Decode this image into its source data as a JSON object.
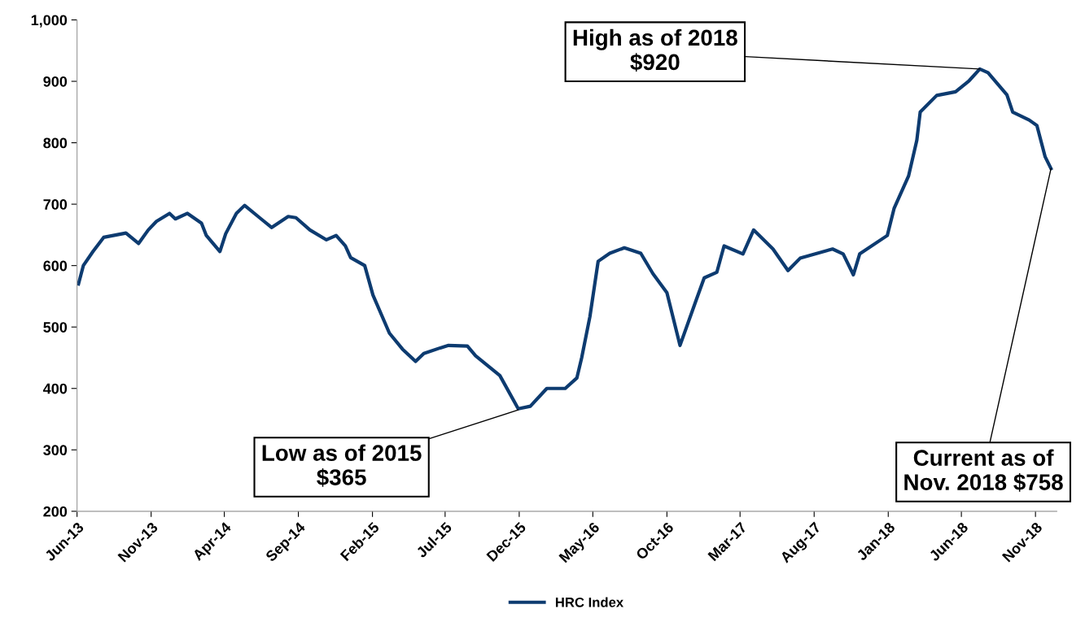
{
  "chart_data": {
    "type": "line",
    "legend": "bottom",
    "grid": false,
    "marker": "none",
    "line_style": "solid",
    "ylim": [
      200,
      1000
    ],
    "yticks": [
      200,
      300,
      400,
      500,
      600,
      700,
      800,
      900,
      {
        "value": 1000,
        "label": "1,000"
      }
    ],
    "xlim": [
      "2013-06-01",
      "2018-12-15"
    ],
    "xticks": [
      {
        "value": "2013-06-01",
        "label": "Jun-13"
      },
      {
        "value": "2013-11-01",
        "label": "Nov-13"
      },
      {
        "value": "2014-04-01",
        "label": "Apr-14"
      },
      {
        "value": "2014-09-01",
        "label": "Sep-14"
      },
      {
        "value": "2015-02-01",
        "label": "Feb-15"
      },
      {
        "value": "2015-07-01",
        "label": "Jul-15"
      },
      {
        "value": "2015-12-01",
        "label": "Dec-15"
      },
      {
        "value": "2016-05-01",
        "label": "May-16"
      },
      {
        "value": "2016-10-01",
        "label": "Oct-16"
      },
      {
        "value": "2017-03-01",
        "label": "Mar-17"
      },
      {
        "value": "2017-08-01",
        "label": "Aug-17"
      },
      {
        "value": "2018-01-01",
        "label": "Jan-18"
      },
      {
        "value": "2018-06-01",
        "label": "Jun-18"
      },
      {
        "value": "2018-11-01",
        "label": "Nov-18"
      }
    ],
    "x": [
      "2013-06-04",
      "2013-06-14",
      "2013-07-04",
      "2013-07-26",
      "2013-09-10",
      "2013-10-06",
      "2013-10-26",
      "2013-11-12",
      "2013-12-09",
      "2013-12-21",
      "2014-01-15",
      "2014-02-13",
      "2014-02-23",
      "2014-03-23",
      "2014-04-04",
      "2014-04-26",
      "2014-05-13",
      "2014-06-16",
      "2014-07-08",
      "2014-08-11",
      "2014-08-27",
      "2014-09-25",
      "2014-10-29",
      "2014-11-18",
      "2014-12-07",
      "2014-12-18",
      "2015-01-16",
      "2015-02-02",
      "2015-03-08",
      "2015-04-04",
      "2015-05-01",
      "2015-05-18",
      "2015-06-21",
      "2015-07-08",
      "2015-08-16",
      "2015-09-02",
      "2015-10-22",
      "2015-11-29",
      "2015-12-24",
      "2016-01-27",
      "2016-03-05",
      "2016-03-29",
      "2016-04-08",
      "2016-04-25",
      "2016-05-12",
      "2016-06-05",
      "2016-07-05",
      "2016-08-08",
      "2016-09-02",
      "2016-10-01",
      "2016-10-28",
      "2016-11-30",
      "2016-12-17",
      "2017-01-12",
      "2017-01-27",
      "2017-03-07",
      "2017-03-29",
      "2017-05-08",
      "2017-06-08",
      "2017-07-03",
      "2017-09-08",
      "2017-09-30",
      "2017-10-21",
      "2017-11-03",
      "2017-12-30",
      "2018-01-13",
      "2018-02-12",
      "2018-03-01",
      "2018-03-08",
      "2018-04-11",
      "2018-05-20",
      "2018-06-17",
      "2018-07-09",
      "2018-07-26",
      "2018-09-03",
      "2018-09-15",
      "2018-10-19",
      "2018-11-04",
      "2018-11-21",
      "2018-12-03"
    ],
    "series": [
      {
        "name": "HRC Index",
        "color": "#0d3b70",
        "values": [
          570,
          600,
          623,
          646,
          653,
          636,
          658,
          672,
          685,
          676,
          685,
          669,
          649,
          623,
          652,
          685,
          698,
          676,
          662,
          680,
          678,
          658,
          642,
          649,
          632,
          613,
          600,
          552,
          490,
          464,
          444,
          457,
          466,
          470,
          469,
          453,
          421,
          367,
          371,
          400,
          400,
          417,
          450,
          517,
          607,
          620,
          629,
          620,
          587,
          556,
          470,
          543,
          580,
          589,
          632,
          619,
          658,
          627,
          592,
          612,
          627,
          619,
          585,
          619,
          649,
          693,
          746,
          804,
          850,
          877,
          883,
          901,
          920,
          914,
          878,
          850,
          837,
          828,
          777,
          758
        ]
      }
    ],
    "annotations": [
      {
        "text": "High as of 2018\n$920",
        "x": "2018-07-09",
        "y": 920
      },
      {
        "text": "Low as of 2015\n$365",
        "x": "2015-11-29",
        "y": 365
      },
      {
        "text": "Current as of\nNov. 2018 $758",
        "x": "2018-12-03",
        "y": 758
      }
    ]
  }
}
